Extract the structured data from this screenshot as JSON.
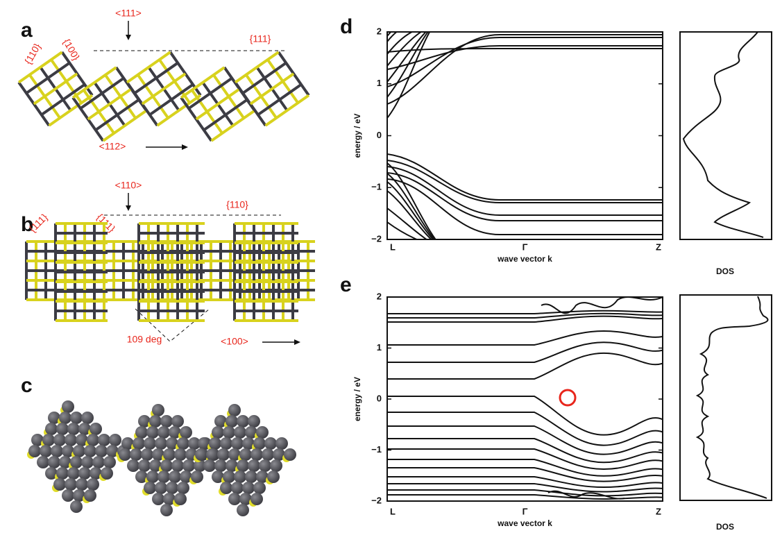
{
  "panels": {
    "a": {
      "label": "a",
      "annotations": [
        "<111>",
        "{111}",
        "{110}",
        "{100}",
        "<112>"
      ]
    },
    "b": {
      "label": "b",
      "annotations": [
        "<110>",
        "{110}",
        "{111}",
        "{111}",
        "109 deg",
        "<100>"
      ]
    },
    "c": {
      "label": "c"
    },
    "d": {
      "label": "d",
      "ylabel": "energy / eV",
      "xlabel": "wave vector k",
      "xticklabels": [
        "L",
        "Γ",
        "Z"
      ],
      "ylim": [
        -2,
        2
      ],
      "yticks": [
        2,
        1,
        0,
        {
          "value": -1,
          "label": "−1"
        },
        {
          "value": -2,
          "label": "−2"
        }
      ],
      "dos_label": "DOS"
    },
    "e": {
      "label": "e",
      "ylabel": "energy / eV",
      "xlabel": "wave vector k",
      "xticklabels": [
        "L",
        "Γ",
        "Z"
      ],
      "ylim": [
        -2,
        2
      ],
      "yticks": [
        2,
        1,
        0,
        {
          "value": -1,
          "label": "−1"
        },
        {
          "value": -2,
          "label": "−2"
        }
      ],
      "dos_label": "DOS"
    }
  }
}
